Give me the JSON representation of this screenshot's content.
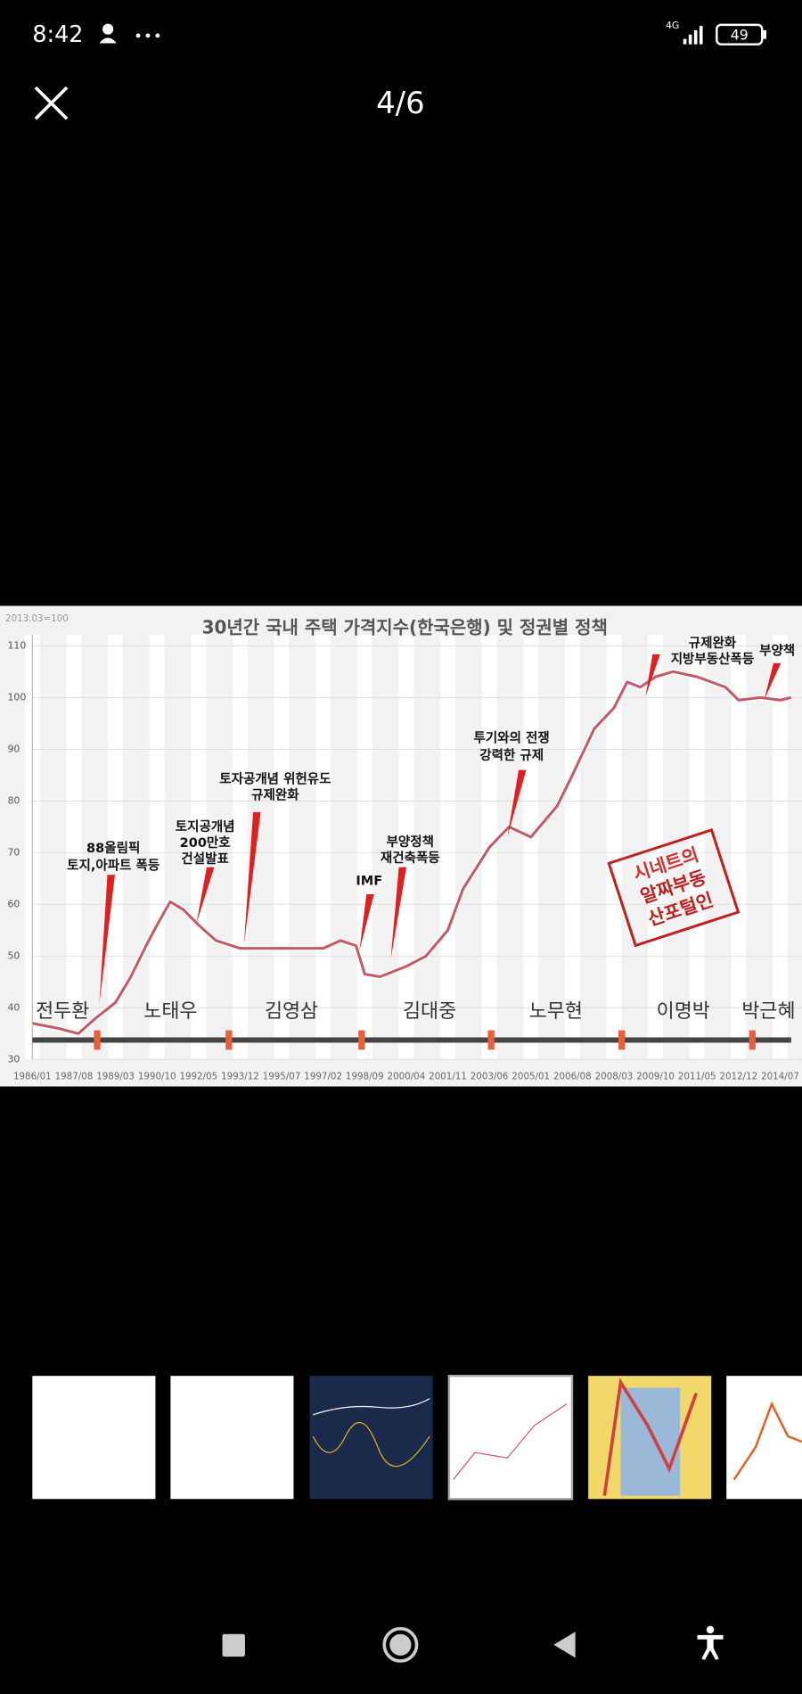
{
  "status_bar": {
    "time": "8:42",
    "network": "4G",
    "battery": "49"
  },
  "viewer": {
    "counter": "4/6"
  },
  "chart_data": {
    "type": "line",
    "title": "30년간 국내 주택 가격지수(한국은행) 및 정권별 정책",
    "subtitle": "2013.03=100",
    "color": "#c45a68",
    "x": [
      "1986/01",
      "1987/01",
      "1987/10",
      "1988/06",
      "1989/03",
      "1989/10",
      "1990/05",
      "1990/10",
      "1991/04",
      "1991/10",
      "1992/05",
      "1993/01",
      "1993/12",
      "1995/07",
      "1997/02",
      "1997/10",
      "1998/05",
      "1998/09",
      "1999/04",
      "2000/04",
      "2001/01",
      "2001/11",
      "2002/06",
      "2003/06",
      "2004/03",
      "2005/01",
      "2006/01",
      "2006/08",
      "2007/06",
      "2008/03",
      "2008/09",
      "2009/03",
      "2009/10",
      "2010/06",
      "2011/05",
      "2012/06",
      "2012/12",
      "2013/10",
      "2014/07",
      "2014/12"
    ],
    "values": [
      37,
      36,
      35,
      38,
      41,
      46,
      52,
      56,
      60.5,
      59,
      56,
      53,
      51.5,
      51.5,
      51.5,
      53,
      52,
      46.5,
      46,
      48,
      50,
      55,
      63,
      71,
      75,
      73,
      79,
      85,
      94,
      98,
      103,
      102,
      104,
      105,
      104,
      102,
      99.5,
      100,
      99.5,
      100
    ],
    "xlim": [
      "1986/01",
      "2015/05"
    ],
    "xticks": [
      "1986/01",
      "1987/08",
      "1989/03",
      "1990/10",
      "1992/05",
      "1993/12",
      "1995/07",
      "1997/02",
      "1998/09",
      "2000/04",
      "2001/11",
      "2003/06",
      "2005/01",
      "2006/08",
      "2008/03",
      "2009/10",
      "2011/05",
      "2012/12",
      "2014/07"
    ],
    "ylim": [
      30,
      110
    ],
    "yticks": [
      30,
      40,
      50,
      60,
      70,
      80,
      90,
      100,
      110
    ],
    "grid": true,
    "periods": [
      "전두환",
      "노태우",
      "김영삼",
      "김대중",
      "노무현",
      "이명박",
      "박근혜"
    ],
    "annotations": [
      {
        "lines": [
          "88올림픽",
          "토지,아파트 폭등"
        ]
      },
      {
        "lines": [
          "토지공개념",
          "200만호",
          "건설발표"
        ]
      },
      {
        "lines": [
          "토자공개념 위헌유도",
          "규제완화"
        ]
      },
      {
        "lines": [
          "IMF"
        ]
      },
      {
        "lines": [
          "부양정책",
          "재건축폭등"
        ]
      },
      {
        "lines": [
          "투기와의 전쟁",
          "강력한 규제"
        ]
      },
      {
        "lines": [
          "규제완화",
          "지방부동산폭등"
        ]
      },
      {
        "lines": [
          "부양책"
        ]
      }
    ],
    "stamp": [
      "시네트의",
      "알짜부동",
      "산포털인"
    ]
  }
}
